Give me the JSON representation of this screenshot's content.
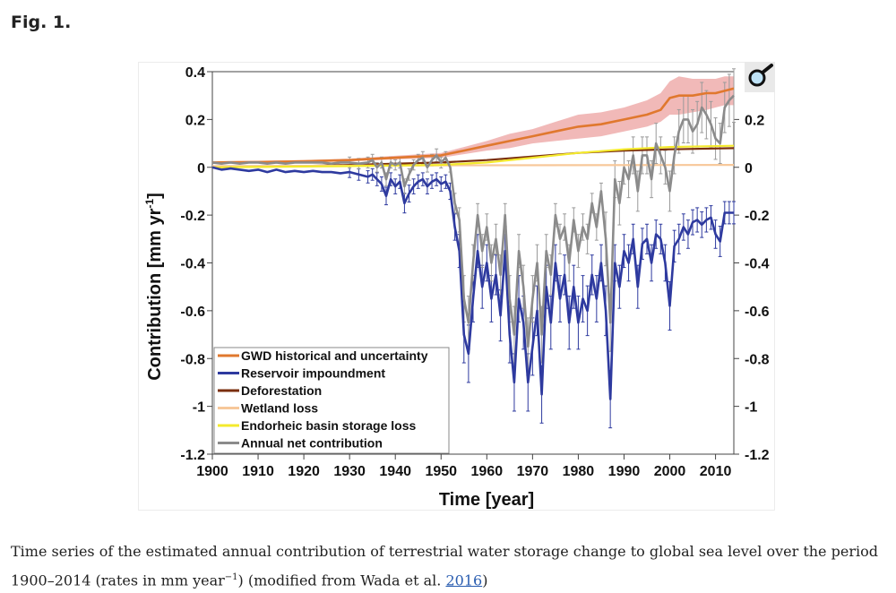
{
  "figure": {
    "label": "Fig. 1.",
    "caption_part1": "Time series of the estimated annual contribution of terrestrial water storage change to global sea level over the period 1900–2014 (rates in mm year",
    "caption_sup": "−1",
    "caption_part2": ") (modified from Wada et al. ",
    "caption_link": "2016",
    "caption_part3": ")",
    "magnifier_icon": "magnifier-icon"
  },
  "colors": {
    "gwd": "#e0782e",
    "gwd_band": "#eca2a0",
    "reservoir": "#2e3a9f",
    "deforestation": "#7a2e0c",
    "wetland": "#f7c89a",
    "endorheic": "#f4ea2c",
    "net": "#8b8b8b",
    "net_err": "#9a9a9a"
  },
  "chart_data": {
    "type": "line",
    "title": "",
    "xlabel": "Time [year]",
    "ylabel": "Contribution [mm yr",
    "ylabel_sup": "-1",
    "ylabel_end": "]",
    "xlim": [
      1900,
      2014
    ],
    "ylim": [
      -1.2,
      0.4
    ],
    "x_ticks": [
      "1900",
      "1910",
      "1920",
      "1930",
      "1940",
      "1950",
      "1960",
      "1970",
      "1980",
      "1990",
      "2000",
      "2010"
    ],
    "y_ticks_left": [
      "0.4",
      "0.2",
      "0",
      "-0.2",
      "-0.4",
      "-0.6",
      "-0.8",
      "-1",
      "-1.2"
    ],
    "y_ticks_right": [
      "0.2",
      "0",
      "-0.2",
      "-0.4",
      "-0.6",
      "-0.8",
      "-1",
      "-1.2"
    ],
    "legend": [
      {
        "label": "GWD historical and uncertainty",
        "color_key": "gwd"
      },
      {
        "label": "Reservoir impoundment",
        "color_key": "reservoir"
      },
      {
        "label": "Deforestation",
        "color_key": "deforestation"
      },
      {
        "label": "Wetland loss",
        "color_key": "wetland"
      },
      {
        "label": "Endorheic basin storage loss",
        "color_key": "endorheic"
      },
      {
        "label": "Annual net contribution",
        "color_key": "net"
      }
    ],
    "legend_position": "bottom-left",
    "series": [
      {
        "name": "GWD historical and uncertainty",
        "color_key": "gwd",
        "x": [
          1900,
          1910,
          1920,
          1930,
          1940,
          1950,
          1955,
          1960,
          1965,
          1970,
          1975,
          1980,
          1985,
          1990,
          1995,
          1998,
          2000,
          2002,
          2005,
          2008,
          2010,
          2012,
          2014
        ],
        "values": [
          0.02,
          0.022,
          0.025,
          0.03,
          0.04,
          0.05,
          0.07,
          0.09,
          0.11,
          0.13,
          0.15,
          0.17,
          0.18,
          0.2,
          0.22,
          0.24,
          0.29,
          0.3,
          0.3,
          0.31,
          0.31,
          0.32,
          0.33
        ],
        "band_low": [
          0.015,
          0.017,
          0.02,
          0.025,
          0.033,
          0.04,
          0.055,
          0.07,
          0.08,
          0.1,
          0.11,
          0.12,
          0.13,
          0.15,
          0.17,
          0.19,
          0.22,
          0.22,
          0.23,
          0.24,
          0.25,
          0.26,
          0.26
        ],
        "band_high": [
          0.025,
          0.027,
          0.03,
          0.036,
          0.048,
          0.06,
          0.085,
          0.11,
          0.14,
          0.16,
          0.19,
          0.22,
          0.23,
          0.25,
          0.28,
          0.31,
          0.36,
          0.38,
          0.37,
          0.37,
          0.37,
          0.38,
          0.38
        ]
      },
      {
        "name": "Deforestation",
        "color_key": "deforestation",
        "x": [
          1900,
          1920,
          1940,
          1950,
          1960,
          1970,
          1980,
          1990,
          2000,
          2014
        ],
        "values": [
          0.0,
          0.005,
          0.015,
          0.02,
          0.03,
          0.045,
          0.06,
          0.07,
          0.075,
          0.08
        ]
      },
      {
        "name": "Wetland loss",
        "color_key": "wetland",
        "x": [
          1900,
          1950,
          2014
        ],
        "values": [
          0.005,
          0.008,
          0.01
        ]
      },
      {
        "name": "Endorheic basin storage loss",
        "color_key": "endorheic",
        "x": [
          1900,
          1930,
          1950,
          1960,
          1970,
          1980,
          1990,
          2000,
          2014
        ],
        "values": [
          0.0,
          0.005,
          0.01,
          0.02,
          0.04,
          0.06,
          0.075,
          0.085,
          0.09
        ]
      },
      {
        "name": "Reservoir impoundment",
        "color_key": "reservoir",
        "x": [
          1900,
          1902,
          1904,
          1906,
          1908,
          1910,
          1912,
          1914,
          1916,
          1918,
          1920,
          1922,
          1924,
          1926,
          1928,
          1930,
          1932,
          1934,
          1935,
          1936,
          1937,
          1938,
          1939,
          1940,
          1941,
          1942,
          1943,
          1944,
          1945,
          1946,
          1947,
          1948,
          1949,
          1950,
          1951,
          1952,
          1953,
          1954,
          1955,
          1956,
          1957,
          1958,
          1959,
          1960,
          1961,
          1962,
          1963,
          1964,
          1965,
          1966,
          1967,
          1968,
          1969,
          1970,
          1971,
          1972,
          1973,
          1974,
          1975,
          1976,
          1977,
          1978,
          1979,
          1980,
          1981,
          1982,
          1983,
          1984,
          1985,
          1986,
          1987,
          1988,
          1989,
          1990,
          1991,
          1992,
          1993,
          1994,
          1995,
          1996,
          1997,
          1998,
          1999,
          2000,
          2001,
          2002,
          2003,
          2004,
          2005,
          2006,
          2007,
          2008,
          2009,
          2010,
          2011,
          2012,
          2013,
          2014
        ],
        "values": [
          0.0,
          -0.01,
          -0.005,
          -0.01,
          -0.015,
          -0.01,
          -0.02,
          -0.01,
          -0.02,
          -0.015,
          -0.02,
          -0.015,
          -0.02,
          -0.02,
          -0.025,
          -0.02,
          -0.03,
          -0.04,
          -0.03,
          -0.05,
          -0.07,
          -0.12,
          -0.05,
          -0.08,
          -0.06,
          -0.15,
          -0.11,
          -0.08,
          -0.06,
          -0.05,
          -0.08,
          -0.06,
          -0.05,
          -0.07,
          -0.06,
          -0.1,
          -0.25,
          -0.35,
          -0.7,
          -0.78,
          -0.55,
          -0.35,
          -0.5,
          -0.4,
          -0.55,
          -0.45,
          -0.62,
          -0.35,
          -0.7,
          -0.9,
          -0.55,
          -0.65,
          -0.9,
          -0.75,
          -0.6,
          -0.95,
          -0.5,
          -0.65,
          -0.4,
          -0.55,
          -0.45,
          -0.65,
          -0.5,
          -0.65,
          -0.55,
          -0.6,
          -0.45,
          -0.55,
          -0.4,
          -0.6,
          -0.97,
          -0.4,
          -0.5,
          -0.35,
          -0.4,
          -0.3,
          -0.5,
          -0.32,
          -0.3,
          -0.4,
          -0.28,
          -0.3,
          -0.4,
          -0.58,
          -0.33,
          -0.3,
          -0.25,
          -0.28,
          -0.23,
          -0.22,
          -0.24,
          -0.22,
          -0.21,
          -0.28,
          -0.31,
          -0.19,
          -0.19,
          -0.19
        ]
      },
      {
        "name": "Annual net contribution",
        "color_key": "net",
        "x": [
          1900,
          1902,
          1904,
          1906,
          1908,
          1910,
          1912,
          1914,
          1916,
          1918,
          1920,
          1922,
          1924,
          1926,
          1928,
          1930,
          1932,
          1934,
          1935,
          1936,
          1937,
          1938,
          1939,
          1940,
          1941,
          1942,
          1943,
          1944,
          1945,
          1946,
          1947,
          1948,
          1949,
          1950,
          1951,
          1952,
          1953,
          1954,
          1955,
          1956,
          1957,
          1958,
          1959,
          1960,
          1961,
          1962,
          1963,
          1964,
          1965,
          1966,
          1967,
          1968,
          1969,
          1970,
          1971,
          1972,
          1973,
          1974,
          1975,
          1976,
          1977,
          1978,
          1979,
          1980,
          1981,
          1982,
          1983,
          1984,
          1985,
          1986,
          1987,
          1988,
          1989,
          1990,
          1991,
          1992,
          1993,
          1994,
          1995,
          1996,
          1997,
          1998,
          1999,
          2000,
          2001,
          2002,
          2003,
          2004,
          2005,
          2006,
          2007,
          2008,
          2009,
          2010,
          2011,
          2012,
          2013,
          2014
        ],
        "values": [
          0.02,
          0.015,
          0.02,
          0.015,
          0.02,
          0.02,
          0.015,
          0.02,
          0.015,
          0.02,
          0.02,
          0.02,
          0.02,
          0.015,
          0.02,
          0.02,
          0.015,
          0.02,
          0.03,
          0.0,
          0.02,
          -0.05,
          0.02,
          0.01,
          0.02,
          -0.08,
          -0.03,
          0.01,
          0.03,
          0.04,
          0.0,
          0.03,
          0.05,
          0.02,
          0.04,
          0.0,
          -0.15,
          -0.22,
          -0.55,
          -0.65,
          -0.4,
          -0.2,
          -0.35,
          -0.25,
          -0.4,
          -0.3,
          -0.45,
          -0.2,
          -0.55,
          -0.7,
          -0.35,
          -0.5,
          -0.75,
          -0.55,
          -0.4,
          -0.7,
          -0.35,
          -0.45,
          -0.2,
          -0.3,
          -0.25,
          -0.4,
          -0.22,
          -0.35,
          -0.25,
          -0.3,
          -0.15,
          -0.25,
          -0.1,
          -0.3,
          -0.65,
          -0.05,
          -0.15,
          0.0,
          -0.05,
          0.05,
          -0.1,
          0.05,
          0.05,
          -0.05,
          0.1,
          0.05,
          0.0,
          -0.1,
          0.05,
          0.15,
          0.2,
          0.2,
          0.15,
          0.18,
          0.25,
          0.22,
          0.18,
          0.12,
          0.1,
          0.25,
          0.28,
          0.3
        ]
      }
    ]
  }
}
